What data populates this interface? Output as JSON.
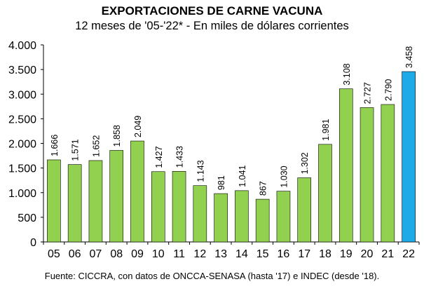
{
  "chart_data": {
    "type": "bar",
    "title": "EXPORTACIONES DE CARNE VACUNA",
    "subtitle": "12 meses de '05-'22* - En miles de dólares corrientes",
    "categories": [
      "05",
      "06",
      "07",
      "08",
      "09",
      "10",
      "11",
      "12",
      "13",
      "14",
      "15",
      "16",
      "17",
      "18",
      "19",
      "20",
      "21",
      "22"
    ],
    "values": [
      1666,
      1571,
      1652,
      1858,
      2049,
      1427,
      1433,
      1143,
      981,
      1041,
      867,
      1030,
      1302,
      1981,
      3108,
      2727,
      2790,
      3458
    ],
    "value_labels": [
      "1.666",
      "1.571",
      "1.652",
      "1.858",
      "2.049",
      "1.427",
      "1.433",
      "1.143",
      "981",
      "1.041",
      "867",
      "1.030",
      "1.302",
      "1.981",
      "3.108",
      "2.727",
      "2.790",
      "3.458"
    ],
    "ylim": [
      0,
      4000
    ],
    "yticks": [
      0,
      500,
      1000,
      1500,
      2000,
      2500,
      3000,
      3500,
      4000
    ],
    "ytick_labels": [
      "0",
      "500",
      "1.000",
      "1.500",
      "2.000",
      "2.500",
      "3.000",
      "3.500",
      "4.000"
    ],
    "grid": false,
    "colors": {
      "default": "#92d050",
      "highlight": "#1eaae8",
      "stroke": "#000000"
    },
    "highlight_category": "22",
    "source": "Fuente: CICCRA, con datos de ONCCA-SENASA (hasta '17) e INDEC (desde '18)."
  }
}
